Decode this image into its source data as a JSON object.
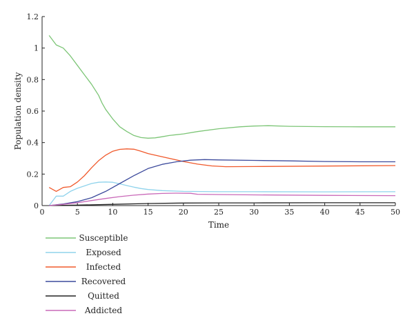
{
  "chart_data": {
    "type": "line",
    "xlabel": "Time",
    "ylabel": "Population density",
    "xlim": [
      0,
      50
    ],
    "ylim": [
      0,
      1.2
    ],
    "xticks": [
      0,
      5,
      10,
      15,
      20,
      25,
      30,
      35,
      40,
      45,
      50
    ],
    "yticks": [
      0,
      0.2,
      0.4,
      0.6,
      0.8,
      1,
      1.2
    ],
    "grid": false,
    "legend_position": "bottom-left, below plot",
    "series": [
      {
        "name": "Susceptible",
        "color": "#7cc576",
        "points": [
          [
            1,
            1.08
          ],
          [
            2,
            1.02
          ],
          [
            3,
            1.0
          ],
          [
            4,
            0.95
          ],
          [
            5,
            0.89
          ],
          [
            6,
            0.83
          ],
          [
            7,
            0.77
          ],
          [
            8,
            0.7
          ],
          [
            8.5,
            0.65
          ],
          [
            9,
            0.61
          ],
          [
            10,
            0.55
          ],
          [
            11,
            0.5
          ],
          [
            12,
            0.47
          ],
          [
            13,
            0.445
          ],
          [
            14,
            0.432
          ],
          [
            15,
            0.428
          ],
          [
            16,
            0.43
          ],
          [
            17,
            0.437
          ],
          [
            18,
            0.445
          ],
          [
            20,
            0.455
          ],
          [
            22,
            0.47
          ],
          [
            25,
            0.488
          ],
          [
            28,
            0.5
          ],
          [
            30,
            0.505
          ],
          [
            32,
            0.507
          ],
          [
            35,
            0.503
          ],
          [
            40,
            0.501
          ],
          [
            45,
            0.5
          ],
          [
            50,
            0.5
          ]
        ]
      },
      {
        "name": "Exposed",
        "color": "#8fd3ec",
        "points": [
          [
            1,
            0.0
          ],
          [
            2,
            0.06
          ],
          [
            3,
            0.06
          ],
          [
            4,
            0.09
          ],
          [
            5,
            0.11
          ],
          [
            6,
            0.125
          ],
          [
            7,
            0.14
          ],
          [
            8,
            0.148
          ],
          [
            9,
            0.15
          ],
          [
            10,
            0.148
          ],
          [
            11,
            0.138
          ],
          [
            12,
            0.127
          ],
          [
            13,
            0.117
          ],
          [
            14,
            0.108
          ],
          [
            15,
            0.102
          ],
          [
            17,
            0.095
          ],
          [
            20,
            0.09
          ],
          [
            25,
            0.088
          ],
          [
            30,
            0.088
          ],
          [
            40,
            0.087
          ],
          [
            50,
            0.088
          ]
        ]
      },
      {
        "name": "Infected",
        "color": "#f0582a",
        "points": [
          [
            1,
            0.115
          ],
          [
            2,
            0.09
          ],
          [
            3,
            0.115
          ],
          [
            4,
            0.12
          ],
          [
            5,
            0.15
          ],
          [
            6,
            0.19
          ],
          [
            7,
            0.24
          ],
          [
            8,
            0.285
          ],
          [
            9,
            0.32
          ],
          [
            10,
            0.345
          ],
          [
            11,
            0.357
          ],
          [
            12,
            0.36
          ],
          [
            13,
            0.358
          ],
          [
            14,
            0.345
          ],
          [
            15,
            0.33
          ],
          [
            17,
            0.31
          ],
          [
            20,
            0.28
          ],
          [
            22,
            0.263
          ],
          [
            24,
            0.252
          ],
          [
            26,
            0.247
          ],
          [
            30,
            0.248
          ],
          [
            40,
            0.251
          ],
          [
            50,
            0.254
          ]
        ]
      },
      {
        "name": "Recovered",
        "color": "#3c4a9c",
        "points": [
          [
            1,
            0.0
          ],
          [
            3,
            0.01
          ],
          [
            5,
            0.025
          ],
          [
            7,
            0.05
          ],
          [
            9,
            0.09
          ],
          [
            11,
            0.14
          ],
          [
            13,
            0.19
          ],
          [
            15,
            0.235
          ],
          [
            17,
            0.262
          ],
          [
            19,
            0.278
          ],
          [
            21,
            0.288
          ],
          [
            23,
            0.292
          ],
          [
            25,
            0.29
          ],
          [
            30,
            0.287
          ],
          [
            35,
            0.284
          ],
          [
            40,
            0.28
          ],
          [
            45,
            0.278
          ],
          [
            50,
            0.278
          ]
        ]
      },
      {
        "name": "Quitted",
        "color": "#222222",
        "points": [
          [
            1,
            0.0
          ],
          [
            5,
            0.003
          ],
          [
            10,
            0.008
          ],
          [
            15,
            0.013
          ],
          [
            20,
            0.016
          ],
          [
            25,
            0.017
          ],
          [
            30,
            0.017
          ],
          [
            40,
            0.018
          ],
          [
            50,
            0.018
          ]
        ]
      },
      {
        "name": "Addicted",
        "color": "#c968b8",
        "points": [
          [
            1,
            0.0
          ],
          [
            3,
            0.008
          ],
          [
            5,
            0.018
          ],
          [
            7,
            0.032
          ],
          [
            9,
            0.045
          ],
          [
            11,
            0.057
          ],
          [
            13,
            0.066
          ],
          [
            15,
            0.073
          ],
          [
            17,
            0.077
          ],
          [
            19,
            0.079
          ],
          [
            21,
            0.078
          ],
          [
            22,
            0.072
          ],
          [
            25,
            0.07
          ],
          [
            30,
            0.068
          ],
          [
            40,
            0.065
          ],
          [
            50,
            0.063
          ]
        ]
      }
    ]
  }
}
